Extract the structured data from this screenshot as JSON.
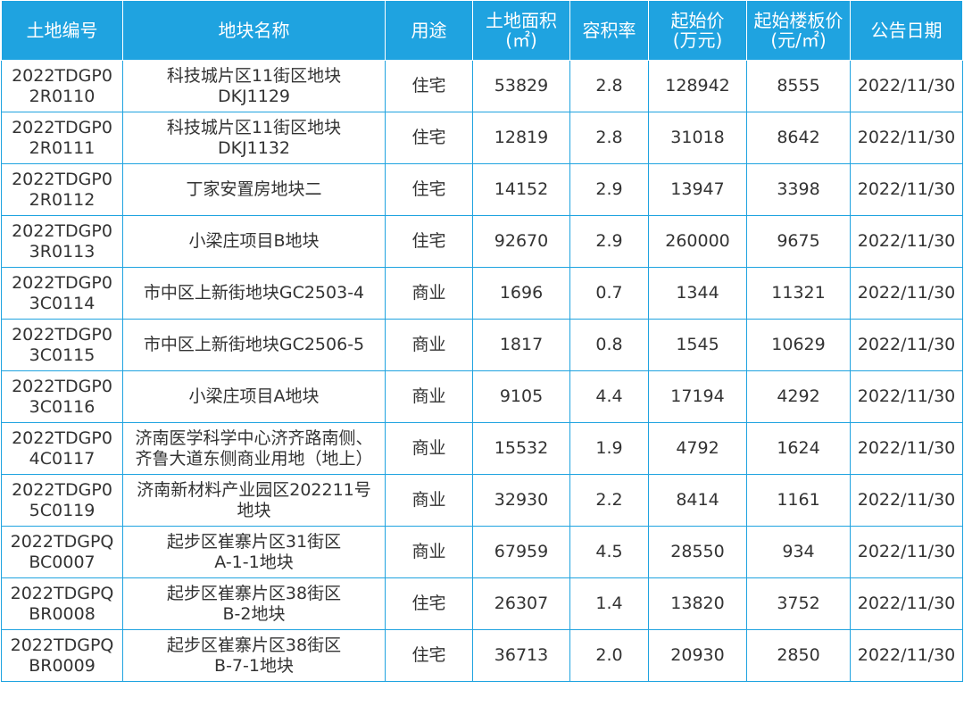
{
  "chart_data": {
    "type": "table",
    "columns": [
      "土地编号",
      "地块名称",
      "用途",
      "土地面积\n(㎡)",
      "容积率",
      "起始价\n(万元)",
      "起始楼板价\n(元/㎡)",
      "公告日期"
    ],
    "rows": [
      [
        "2022TDGP0\n2R0110",
        "科技城片区11街区地块\nDKJ1129",
        "住宅",
        "53829",
        "2.8",
        "128942",
        "8555",
        "2022/11/30"
      ],
      [
        "2022TDGP0\n2R0111",
        "科技城片区11街区地块\nDKJ1132",
        "住宅",
        "12819",
        "2.8",
        "31018",
        "8642",
        "2022/11/30"
      ],
      [
        "2022TDGP0\n2R0112",
        "丁家安置房地块二",
        "住宅",
        "14152",
        "2.9",
        "13947",
        "3398",
        "2022/11/30"
      ],
      [
        "2022TDGP0\n3R0113",
        "小梁庄项目B地块",
        "住宅",
        "92670",
        "2.9",
        "260000",
        "9675",
        "2022/11/30"
      ],
      [
        "2022TDGP0\n3C0114",
        "市中区上新街地块GC2503-4",
        "商业",
        "1696",
        "0.7",
        "1344",
        "11321",
        "2022/11/30"
      ],
      [
        "2022TDGP0\n3C0115",
        "市中区上新街地块GC2506-5",
        "商业",
        "1817",
        "0.8",
        "1545",
        "10629",
        "2022/11/30"
      ],
      [
        "2022TDGP0\n3C0116",
        "小梁庄项目A地块",
        "商业",
        "9105",
        "4.4",
        "17194",
        "4292",
        "2022/11/30"
      ],
      [
        "2022TDGP0\n4C0117",
        "济南医学科学中心济齐路南侧、\n齐鲁大道东侧商业用地（地上）",
        "商业",
        "15532",
        "1.9",
        "4792",
        "1624",
        "2022/11/30"
      ],
      [
        "2022TDGP0\n5C0119",
        "济南新材料产业园区202211号\n地块",
        "商业",
        "32930",
        "2.2",
        "8414",
        "1161",
        "2022/11/30"
      ],
      [
        "2022TDGPQ\nBC0007",
        "起步区崔寨片区31街区\nA-1-1地块",
        "商业",
        "67959",
        "4.5",
        "28550",
        "934",
        "2022/11/30"
      ],
      [
        "2022TDGPQ\nBR0008",
        "起步区崔寨片区38街区\nB-2地块",
        "住宅",
        "26307",
        "1.4",
        "13820",
        "3752",
        "2022/11/30"
      ],
      [
        "2022TDGPQ\nBR0009",
        "起步区崔寨片区38街区\nB-7-1地块",
        "住宅",
        "36713",
        "2.0",
        "20930",
        "2850",
        "2022/11/30"
      ]
    ],
    "colors": {
      "header_bg": "#1fa3e0",
      "header_text": "#ffffff",
      "border": "#1fa3e0",
      "cell_text": "#333333"
    }
  }
}
